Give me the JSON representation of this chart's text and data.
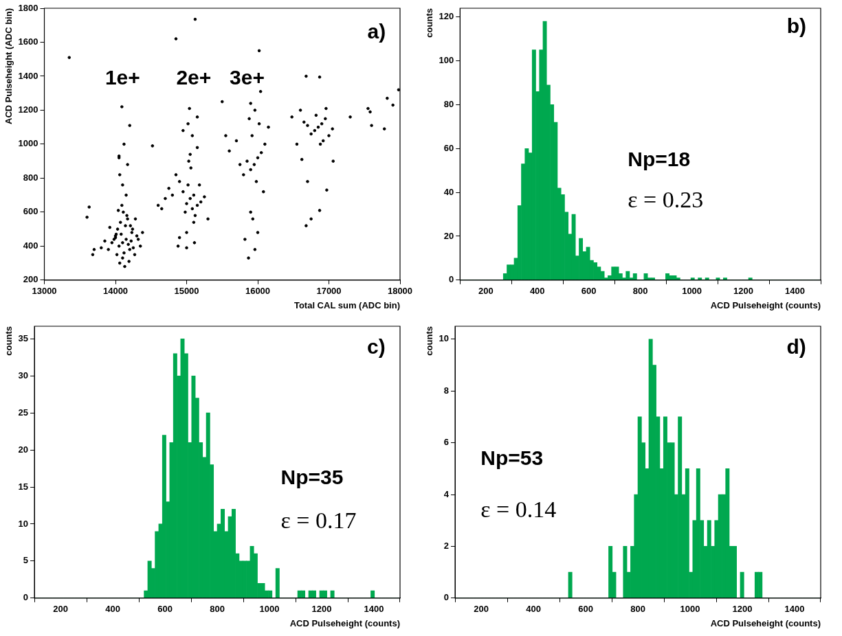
{
  "chart_data": [
    {
      "type": "scatter",
      "xlabel": "Total CAL sum (ADC bin)",
      "ylabel": "ACD Pulseheight (ADC bin)",
      "color": "#000000",
      "marker": "circle",
      "xlim": [
        13000,
        18000
      ],
      "xticks": [
        13000,
        14000,
        15000,
        16000,
        17000,
        18000
      ],
      "ylim": [
        200,
        1800
      ],
      "yticks": [
        200,
        400,
        600,
        800,
        1000,
        1200,
        1400,
        1600,
        1800
      ],
      "x": [
        14100,
        14050,
        14150,
        14200,
        14000,
        14120,
        14080,
        14180,
        14030,
        14220,
        14250,
        13950,
        13900,
        14300,
        14350,
        14100,
        14060,
        14140,
        14170,
        14020,
        14230,
        14110,
        14090,
        14160,
        13980,
        14270,
        14130,
        14040,
        14210,
        14070,
        13850,
        13800,
        14320,
        14190,
        14010,
        14240,
        14150,
        14100,
        14060,
        13920,
        14280,
        14380,
        13700,
        13680,
        14120,
        14200,
        14050,
        14170,
        14090,
        14000,
        13600,
        13630,
        14050,
        14520,
        15050,
        15000,
        15100,
        14950,
        15080,
        15020,
        15150,
        14900,
        15200,
        14850,
        14800,
        15120,
        15060,
        14980,
        15030,
        15180,
        14750,
        14700,
        14650,
        15250,
        15100,
        15000,
        14900,
        15050,
        15150,
        15080,
        14950,
        15020,
        14600,
        15300,
        14880,
        15110,
        15000,
        15150,
        15040,
        15950,
        15900,
        16000,
        15850,
        16050,
        15800,
        16100,
        15920,
        15980,
        15750,
        16150,
        15700,
        15600,
        15550,
        15880,
        15960,
        16020,
        16080,
        15900,
        15930,
        16000,
        15820,
        15960,
        15870,
        15500,
        16040,
        16850,
        16800,
        16900,
        16750,
        16950,
        16700,
        17000,
        16650,
        17050,
        16600,
        16880,
        16820,
        16920,
        16550,
        16480,
        16620,
        16960,
        16700,
        17060,
        17300,
        17550,
        17580,
        17780,
        17900,
        17980,
        17820,
        17600,
        16680,
        16750,
        16870,
        16970,
        13350,
        14850,
        15120,
        16020,
        16680,
        16870,
        15900
      ],
      "values": [
        420,
        400,
        440,
        380,
        450,
        360,
        470,
        410,
        500,
        430,
        390,
        420,
        380,
        460,
        400,
        330,
        300,
        520,
        560,
        350,
        480,
        600,
        640,
        580,
        440,
        350,
        280,
        610,
        520,
        540,
        430,
        390,
        440,
        310,
        470,
        500,
        700,
        760,
        820,
        510,
        560,
        480,
        380,
        350,
        1000,
        1110,
        920,
        880,
        1220,
        460,
        570,
        630,
        930,
        990,
        680,
        650,
        700,
        720,
        620,
        760,
        640,
        780,
        660,
        820,
        700,
        580,
        860,
        600,
        900,
        760,
        740,
        680,
        620,
        690,
        540,
        480,
        450,
        940,
        980,
        1050,
        1080,
        1120,
        640,
        560,
        400,
        420,
        390,
        1160,
        1210,
        880,
        850,
        920,
        900,
        950,
        820,
        1000,
        1050,
        780,
        880,
        1100,
        1020,
        960,
        1050,
        1150,
        1200,
        1120,
        720,
        600,
        560,
        480,
        440,
        380,
        330,
        1250,
        1310,
        1100,
        1080,
        1120,
        1060,
        1150,
        1110,
        1050,
        1130,
        1090,
        1200,
        1000,
        1170,
        1020,
        1000,
        1160,
        910,
        1210,
        780,
        900,
        1160,
        1210,
        1190,
        1090,
        1230,
        1320,
        1270,
        1110,
        520,
        560,
        610,
        730,
        1510,
        1620,
        1735,
        1550,
        1400,
        1395,
        1240
      ],
      "annotations": [
        "1e+",
        "2e+",
        "3e+",
        "a)"
      ]
    },
    {
      "type": "histogram",
      "xlabel": "ACD Pulseheight (counts)",
      "ylabel": "counts",
      "color": "#00a84f",
      "xlim": [
        100,
        1500
      ],
      "xticks": [
        200,
        400,
        600,
        800,
        1000,
        1200,
        1400
      ],
      "ylim": [
        0,
        124
      ],
      "yticks": [
        0,
        20,
        40,
        60,
        80,
        100,
        120
      ],
      "bins": [
        100,
        114,
        128,
        142,
        156,
        170,
        184,
        198,
        212,
        226,
        240,
        254,
        268,
        282,
        296,
        310,
        324,
        338,
        352,
        366,
        380,
        394,
        408,
        422,
        436,
        450,
        464,
        478,
        492,
        506,
        520,
        534,
        548,
        562,
        576,
        590,
        604,
        618,
        632,
        646,
        660,
        674,
        688,
        702,
        716,
        730,
        744,
        758,
        772,
        786,
        800,
        814,
        828,
        842,
        856,
        870,
        884,
        898,
        912,
        926,
        940,
        954,
        968,
        982,
        996,
        1010,
        1024,
        1038,
        1052,
        1066,
        1080,
        1094,
        1108,
        1122,
        1136,
        1150,
        1164,
        1178,
        1192,
        1206,
        1220,
        1234,
        1248,
        1262,
        1276,
        1290,
        1304,
        1318,
        1332,
        1346,
        1360,
        1374,
        1388,
        1402,
        1416,
        1430,
        1444,
        1458,
        1472,
        1486,
        1500
      ],
      "values": [
        0,
        0,
        0,
        0,
        0,
        0,
        0,
        0,
        0,
        0,
        0,
        0,
        3,
        7,
        7,
        10,
        34,
        53,
        60,
        58,
        105,
        86,
        105,
        118,
        89,
        80,
        72,
        42,
        39,
        31,
        21,
        30,
        11,
        19,
        13,
        15,
        9,
        8,
        6,
        4,
        1,
        2,
        6,
        6,
        3,
        1,
        4,
        1,
        3,
        0,
        0,
        3,
        1,
        1,
        0,
        0,
        0,
        3,
        2,
        2,
        1,
        0,
        0,
        0,
        1,
        0,
        1,
        0,
        1,
        0,
        0,
        1,
        0,
        1,
        0,
        0,
        0,
        0,
        0,
        0,
        1,
        0,
        0,
        0,
        0,
        0,
        0,
        0,
        0,
        0,
        0,
        0,
        0,
        0,
        0,
        0,
        0,
        0,
        0,
        0
      ],
      "annotations": [
        "b)",
        "Np=18",
        "ε = 0.23"
      ]
    },
    {
      "type": "histogram",
      "xlabel": "ACD Pulseheight (counts)",
      "ylabel": "counts",
      "color": "#00a84f",
      "xlim": [
        100,
        1500
      ],
      "xticks": [
        200,
        400,
        600,
        800,
        1000,
        1200,
        1400
      ],
      "ylim": [
        0,
        36.7
      ],
      "yticks": [
        0,
        5,
        10,
        15,
        20,
        25,
        30,
        35
      ],
      "bins": [
        100,
        114,
        128,
        142,
        156,
        170,
        184,
        198,
        212,
        226,
        240,
        254,
        268,
        282,
        296,
        310,
        324,
        338,
        352,
        366,
        380,
        394,
        408,
        422,
        436,
        450,
        464,
        478,
        492,
        506,
        520,
        534,
        548,
        562,
        576,
        590,
        604,
        618,
        632,
        646,
        660,
        674,
        688,
        702,
        716,
        730,
        744,
        758,
        772,
        786,
        800,
        814,
        828,
        842,
        856,
        870,
        884,
        898,
        912,
        926,
        940,
        954,
        968,
        982,
        996,
        1010,
        1024,
        1038,
        1052,
        1066,
        1080,
        1094,
        1108,
        1122,
        1136,
        1150,
        1164,
        1178,
        1192,
        1206,
        1220,
        1234,
        1248,
        1262,
        1276,
        1290,
        1304,
        1318,
        1332,
        1346,
        1360,
        1374,
        1388,
        1402,
        1416,
        1430,
        1444,
        1458,
        1472,
        1486,
        1500
      ],
      "values": [
        0,
        0,
        0,
        0,
        0,
        0,
        0,
        0,
        0,
        0,
        0,
        0,
        0,
        0,
        0,
        0,
        0,
        0,
        0,
        0,
        0,
        0,
        0,
        0,
        0,
        0,
        0,
        0,
        0,
        0,
        1,
        5,
        4,
        9,
        10,
        22,
        13,
        21,
        33,
        30,
        35,
        33,
        21,
        30,
        27,
        21,
        19,
        25,
        18,
        9,
        10,
        12,
        9,
        11,
        12,
        6,
        5,
        5,
        5,
        7,
        6,
        2,
        2,
        1,
        1,
        0,
        4,
        0,
        0,
        0,
        0,
        0,
        1,
        1,
        0,
        1,
        1,
        0,
        1,
        1,
        0,
        1,
        0,
        0,
        0,
        0,
        0,
        0,
        0,
        0,
        0,
        0,
        1,
        0,
        0,
        0,
        0,
        0,
        0,
        0
      ],
      "annotations": [
        "c)",
        "Np=35",
        "ε = 0.17"
      ]
    },
    {
      "type": "histogram",
      "xlabel": "ACD Pulseheight (counts)",
      "ylabel": "counts",
      "color": "#00a84f",
      "xlim": [
        100,
        1500
      ],
      "xticks": [
        200,
        400,
        600,
        800,
        1000,
        1200,
        1400
      ],
      "ylim": [
        0,
        10.5
      ],
      "yticks": [
        0,
        2,
        4,
        6,
        8,
        10
      ],
      "bins": [
        100,
        114,
        128,
        142,
        156,
        170,
        184,
        198,
        212,
        226,
        240,
        254,
        268,
        282,
        296,
        310,
        324,
        338,
        352,
        366,
        380,
        394,
        408,
        422,
        436,
        450,
        464,
        478,
        492,
        506,
        520,
        534,
        548,
        562,
        576,
        590,
        604,
        618,
        632,
        646,
        660,
        674,
        688,
        702,
        716,
        730,
        744,
        758,
        772,
        786,
        800,
        814,
        828,
        842,
        856,
        870,
        884,
        898,
        912,
        926,
        940,
        954,
        968,
        982,
        996,
        1010,
        1024,
        1038,
        1052,
        1066,
        1080,
        1094,
        1108,
        1122,
        1136,
        1150,
        1164,
        1178,
        1192,
        1206,
        1220,
        1234,
        1248,
        1262,
        1276,
        1290,
        1304,
        1318,
        1332,
        1346,
        1360,
        1374,
        1388,
        1402,
        1416,
        1430,
        1444,
        1458,
        1472,
        1486,
        1500
      ],
      "values": [
        0,
        0,
        0,
        0,
        0,
        0,
        0,
        0,
        0,
        0,
        0,
        0,
        0,
        0,
        0,
        0,
        0,
        0,
        0,
        0,
        0,
        0,
        0,
        0,
        0,
        0,
        0,
        0,
        0,
        0,
        0,
        1,
        0,
        0,
        0,
        0,
        0,
        0,
        0,
        0,
        0,
        0,
        2,
        1,
        0,
        0,
        2,
        1,
        2,
        4,
        7,
        6,
        5,
        10,
        9,
        7,
        5,
        7,
        6,
        6,
        4,
        7,
        4,
        5,
        1,
        3,
        5,
        3,
        2,
        3,
        2,
        3,
        4,
        4,
        5,
        2,
        2,
        0,
        1,
        0,
        0,
        0,
        1,
        1,
        0,
        0,
        0,
        0,
        0,
        0,
        0,
        0,
        0,
        0,
        0,
        0,
        0,
        0,
        0,
        0
      ],
      "annotations": [
        "d)",
        "Np=53",
        "ε = 0.14"
      ]
    }
  ]
}
